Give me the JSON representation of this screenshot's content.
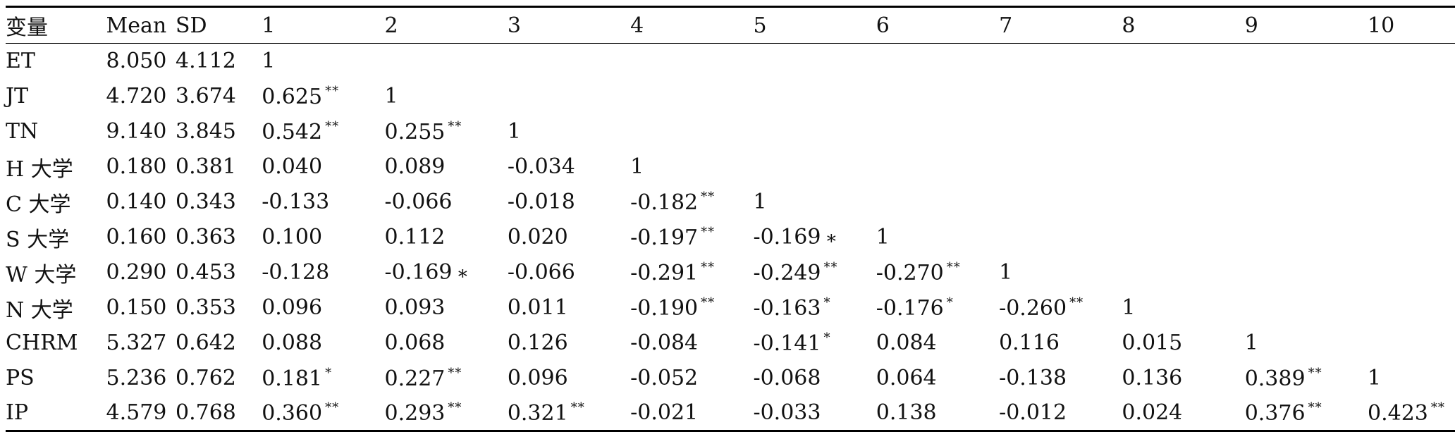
{
  "table": {
    "headers": [
      "变量",
      "Mean",
      "SD",
      "1",
      "2",
      "3",
      "4",
      "5",
      "6",
      "7",
      "8",
      "9",
      "10"
    ],
    "rows": [
      {
        "label": "ET",
        "mean": "8.050",
        "sd": "4.112",
        "cells": [
          {
            "v": "1",
            "sig": ""
          }
        ]
      },
      {
        "label": "JT",
        "mean": "4.720",
        "sd": "3.674",
        "cells": [
          {
            "v": "0.625",
            "sig": "**"
          },
          {
            "v": "1",
            "sig": ""
          }
        ]
      },
      {
        "label": "TN",
        "mean": "9.140",
        "sd": "3.845",
        "cells": [
          {
            "v": "0.542",
            "sig": "**"
          },
          {
            "v": "0.255",
            "sig": "**"
          },
          {
            "v": "1",
            "sig": ""
          }
        ]
      },
      {
        "label": "H 大学",
        "mean": "0.180",
        "sd": "0.381",
        "cells": [
          {
            "v": "0.040",
            "sig": ""
          },
          {
            "v": "0.089",
            "sig": ""
          },
          {
            "v": "-0.034",
            "sig": ""
          },
          {
            "v": "1",
            "sig": ""
          }
        ]
      },
      {
        "label": "C 大学",
        "mean": "0.140",
        "sd": "0.343",
        "cells": [
          {
            "v": "-0.133",
            "sig": ""
          },
          {
            "v": "-0.066",
            "sig": ""
          },
          {
            "v": "-0.018",
            "sig": ""
          },
          {
            "v": "-0.182",
            "sig": "**"
          },
          {
            "v": "1",
            "sig": ""
          }
        ]
      },
      {
        "label": "S 大学",
        "mean": "0.160",
        "sd": "0.363",
        "cells": [
          {
            "v": "0.100",
            "sig": ""
          },
          {
            "v": "0.112",
            "sig": ""
          },
          {
            "v": "0.020",
            "sig": ""
          },
          {
            "v": "-0.197",
            "sig": "**"
          },
          {
            "v": "-0.169",
            "sig": "∗",
            "inline": true
          },
          {
            "v": "1",
            "sig": ""
          }
        ]
      },
      {
        "label": "W 大学",
        "mean": "0.290",
        "sd": "0.453",
        "cells": [
          {
            "v": "-0.128",
            "sig": ""
          },
          {
            "v": "-0.169",
            "sig": "∗",
            "inline": true
          },
          {
            "v": "-0.066",
            "sig": ""
          },
          {
            "v": "-0.291",
            "sig": "**"
          },
          {
            "v": "-0.249",
            "sig": "**"
          },
          {
            "v": "-0.270",
            "sig": "**"
          },
          {
            "v": "1",
            "sig": ""
          }
        ]
      },
      {
        "label": "N 大学",
        "mean": "0.150",
        "sd": "0.353",
        "cells": [
          {
            "v": "0.096",
            "sig": ""
          },
          {
            "v": "0.093",
            "sig": ""
          },
          {
            "v": "0.011",
            "sig": ""
          },
          {
            "v": "-0.190",
            "sig": "**"
          },
          {
            "v": "-0.163",
            "sig": "*"
          },
          {
            "v": "-0.176",
            "sig": "*"
          },
          {
            "v": "-0.260",
            "sig": "**"
          },
          {
            "v": "1",
            "sig": ""
          }
        ]
      },
      {
        "label": "CHRM",
        "mean": "5.327",
        "sd": "0.642",
        "cells": [
          {
            "v": "0.088",
            "sig": ""
          },
          {
            "v": "0.068",
            "sig": ""
          },
          {
            "v": "0.126",
            "sig": ""
          },
          {
            "v": "-0.084",
            "sig": ""
          },
          {
            "v": "-0.141",
            "sig": "*"
          },
          {
            "v": "0.084",
            "sig": ""
          },
          {
            "v": "0.116",
            "sig": ""
          },
          {
            "v": "0.015",
            "sig": ""
          },
          {
            "v": "1",
            "sig": ""
          }
        ]
      },
      {
        "label": "PS",
        "mean": "5.236",
        "sd": "0.762",
        "cells": [
          {
            "v": "0.181",
            "sig": "*"
          },
          {
            "v": "0.227",
            "sig": "**"
          },
          {
            "v": "0.096",
            "sig": ""
          },
          {
            "v": "-0.052",
            "sig": ""
          },
          {
            "v": "-0.068",
            "sig": ""
          },
          {
            "v": "0.064",
            "sig": ""
          },
          {
            "v": "-0.138",
            "sig": ""
          },
          {
            "v": "0.136",
            "sig": ""
          },
          {
            "v": "0.389",
            "sig": "**"
          },
          {
            "v": "1",
            "sig": ""
          }
        ]
      },
      {
        "label": "IP",
        "mean": "4.579",
        "sd": "0.768",
        "cells": [
          {
            "v": "0.360",
            "sig": "**"
          },
          {
            "v": "0.293",
            "sig": "**"
          },
          {
            "v": "0.321",
            "sig": "**"
          },
          {
            "v": "-0.021",
            "sig": ""
          },
          {
            "v": "-0.033",
            "sig": ""
          },
          {
            "v": "0.138",
            "sig": ""
          },
          {
            "v": "-0.012",
            "sig": ""
          },
          {
            "v": "0.024",
            "sig": ""
          },
          {
            "v": "0.376",
            "sig": "**"
          },
          {
            "v": "0.423",
            "sig": "**"
          }
        ]
      }
    ]
  }
}
